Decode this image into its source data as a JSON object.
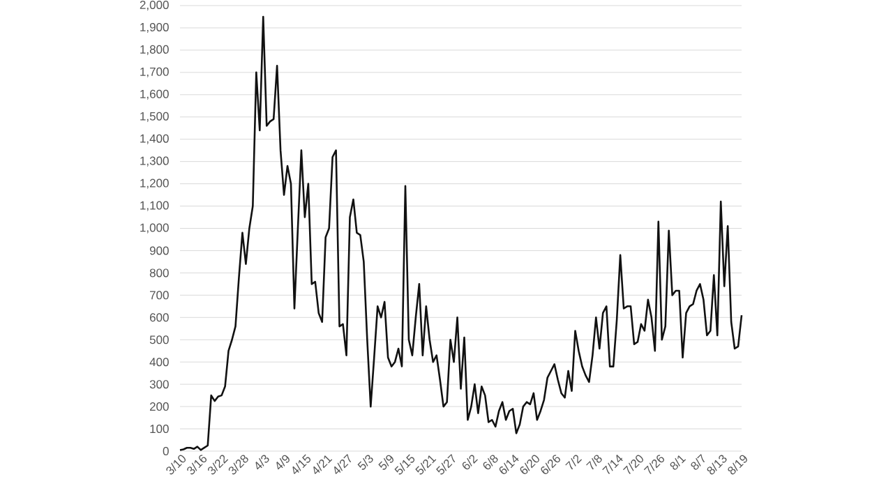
{
  "chart_data": {
    "type": "line",
    "categories": [
      "3/10",
      null,
      null,
      null,
      null,
      null,
      "3/16",
      null,
      null,
      null,
      null,
      null,
      "3/22",
      null,
      null,
      null,
      null,
      null,
      "3/28",
      null,
      null,
      null,
      null,
      null,
      "4/3",
      null,
      null,
      null,
      null,
      null,
      "4/9",
      null,
      null,
      null,
      null,
      null,
      "4/15",
      null,
      null,
      null,
      null,
      null,
      "4/21",
      null,
      null,
      null,
      null,
      null,
      "4/27",
      null,
      null,
      null,
      null,
      null,
      "5/3",
      null,
      null,
      null,
      null,
      null,
      "5/9",
      null,
      null,
      null,
      null,
      null,
      "5/15",
      null,
      null,
      null,
      null,
      null,
      "5/21",
      null,
      null,
      null,
      null,
      null,
      "5/27",
      null,
      null,
      null,
      null,
      null,
      "6/2",
      null,
      null,
      null,
      null,
      null,
      "6/8",
      null,
      null,
      null,
      null,
      null,
      "6/14",
      null,
      null,
      null,
      null,
      null,
      "6/20",
      null,
      null,
      null,
      null,
      null,
      "6/26",
      null,
      null,
      null,
      null,
      null,
      "7/2",
      null,
      null,
      null,
      null,
      null,
      "7/8",
      null,
      null,
      null,
      null,
      null,
      "7/14",
      null,
      null,
      null,
      null,
      null,
      "7/20",
      null,
      null,
      null,
      null,
      null,
      "7/26",
      null,
      null,
      null,
      null,
      null,
      "8/1",
      null,
      null,
      null,
      null,
      null,
      "8/7",
      null,
      null,
      null,
      null,
      null,
      "8/13",
      null,
      null,
      null,
      null,
      null,
      "8/19"
    ],
    "values": [
      5,
      8,
      15,
      15,
      10,
      20,
      5,
      15,
      25,
      250,
      225,
      245,
      250,
      290,
      450,
      500,
      560,
      780,
      980,
      840,
      1000,
      1100,
      1700,
      1440,
      1950,
      1460,
      1480,
      1490,
      1730,
      1350,
      1150,
      1280,
      1200,
      640,
      1000,
      1350,
      1050,
      1200,
      750,
      760,
      620,
      580,
      960,
      1000,
      1320,
      1350,
      560,
      570,
      430,
      1050,
      1130,
      980,
      970,
      850,
      500,
      200,
      420,
      650,
      600,
      670,
      420,
      380,
      400,
      460,
      380,
      1190,
      500,
      430,
      600,
      750,
      430,
      650,
      500,
      400,
      430,
      320,
      200,
      220,
      500,
      400,
      600,
      280,
      510,
      140,
      200,
      300,
      170,
      290,
      250,
      130,
      140,
      110,
      180,
      220,
      140,
      180,
      190,
      80,
      120,
      200,
      220,
      210,
      260,
      140,
      180,
      230,
      330,
      360,
      390,
      320,
      260,
      240,
      360,
      270,
      540,
      450,
      380,
      340,
      310,
      430,
      600,
      460,
      620,
      650,
      380,
      380,
      590,
      880,
      640,
      650,
      650,
      480,
      490,
      570,
      540,
      680,
      600,
      450,
      1030,
      500,
      560,
      990,
      700,
      720,
      720,
      420,
      620,
      650,
      660,
      720,
      750,
      680,
      520,
      540,
      790,
      520,
      1120,
      740,
      1010,
      580,
      460,
      470,
      610
    ],
    "color": "#111111",
    "ylim": [
      0,
      2000
    ],
    "yticks": [
      0,
      100,
      200,
      300,
      400,
      500,
      600,
      700,
      800,
      900,
      {
        "value": 1000,
        "label": "1,000"
      },
      {
        "value": 1100,
        "label": "1,100"
      },
      {
        "value": 1200,
        "label": "1,200"
      },
      {
        "value": 1300,
        "label": "1,300"
      },
      {
        "value": 1400,
        "label": "1,400"
      },
      {
        "value": 1500,
        "label": "1,500"
      },
      {
        "value": 1600,
        "label": "1,600"
      },
      {
        "value": 1700,
        "label": "1,700"
      },
      {
        "value": 1800,
        "label": "1,800"
      },
      {
        "value": 1900,
        "label": "1,900"
      },
      {
        "value": 2000,
        "label": "2,000"
      }
    ],
    "grid": "y"
  }
}
